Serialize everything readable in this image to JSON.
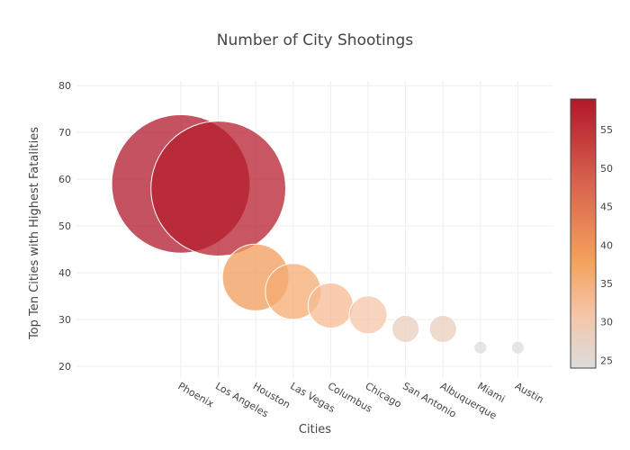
{
  "chart_data": {
    "type": "scatter",
    "subtype": "bubble",
    "title": "Number of City Shootings",
    "xlabel": "Cities",
    "ylabel": "Top Ten Cities with Highest Fatalities",
    "categories": [
      "Phoenix",
      "Los Angeles",
      "Houston",
      "Las Vegas",
      "Columbus",
      "Chicago",
      "San Antonio",
      "Albuquerque",
      "Miami",
      "Austin"
    ],
    "values": [
      59,
      58,
      39,
      36,
      33,
      31,
      28,
      28,
      24,
      24
    ],
    "ylim": [
      17.5,
      81
    ],
    "yticks": [
      20,
      30,
      40,
      50,
      60,
      70,
      80
    ],
    "grid": true,
    "colorbar": {
      "range": [
        24,
        59
      ],
      "ticks": [
        25,
        30,
        35,
        40,
        45,
        50,
        55
      ],
      "colorscale": "RdBu-reversed",
      "stops": [
        "#dcdcdc",
        "#f5c5a8",
        "#f4a15c",
        "#d6604d",
        "#b2182b"
      ]
    }
  }
}
